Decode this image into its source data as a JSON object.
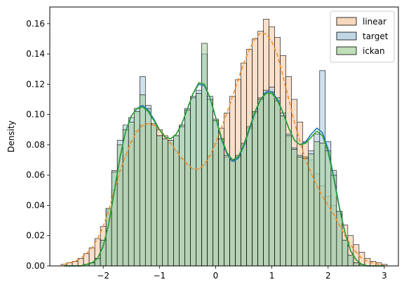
{
  "chart_data": {
    "type": "bar",
    "xlabel": "",
    "ylabel": "Density",
    "xlim": [
      -2.95,
      3.25
    ],
    "ylim": [
      0,
      0.171
    ],
    "xticks": [
      -2,
      -1,
      0,
      1,
      2,
      3
    ],
    "xtick_labels": [
      "−2",
      "−1",
      "0",
      "1",
      "2",
      "3"
    ],
    "yticks": [
      0,
      0.02,
      0.04,
      0.06,
      0.08,
      0.1,
      0.12,
      0.14,
      0.16
    ],
    "ytick_labels": [
      "0.00",
      "0.02",
      "0.04",
      "0.06",
      "0.08",
      "0.10",
      "0.12",
      "0.14",
      "0.16"
    ],
    "grid": false,
    "legend_position": "top-right",
    "bins": {
      "start": -2.75,
      "width": 0.1,
      "count": 58
    },
    "series": [
      {
        "name": "linear",
        "fill": "#f5c7a0",
        "fill_opacity": 0.55,
        "kde_color": "#f28e2b",
        "kde_style": "dashed",
        "values": [
          0.001,
          0.002,
          0.003,
          0.005,
          0.008,
          0.012,
          0.018,
          0.026,
          0.037,
          0.05,
          0.063,
          0.073,
          0.082,
          0.089,
          0.093,
          0.094,
          0.093,
          0.09,
          0.086,
          0.081,
          0.076,
          0.071,
          0.067,
          0.064,
          0.064,
          0.067,
          0.073,
          0.081,
          0.091,
          0.101,
          0.112,
          0.123,
          0.134,
          0.143,
          0.15,
          0.155,
          0.163,
          0.158,
          0.151,
          0.139,
          0.125,
          0.11,
          0.095,
          0.082,
          0.07,
          0.061,
          0.053,
          0.046,
          0.04,
          0.034,
          0.027,
          0.02,
          0.014,
          0.009,
          0.005,
          0.003,
          0.002,
          0.001
        ],
        "kde": [
          0.001,
          0.002,
          0.003,
          0.005,
          0.008,
          0.012,
          0.018,
          0.026,
          0.037,
          0.05,
          0.063,
          0.073,
          0.082,
          0.089,
          0.093,
          0.094,
          0.093,
          0.09,
          0.086,
          0.081,
          0.076,
          0.071,
          0.067,
          0.064,
          0.064,
          0.067,
          0.073,
          0.081,
          0.091,
          0.101,
          0.112,
          0.123,
          0.134,
          0.143,
          0.15,
          0.154,
          0.153,
          0.148,
          0.139,
          0.125,
          0.11,
          0.095,
          0.082,
          0.07,
          0.061,
          0.053,
          0.046,
          0.04,
          0.034,
          0.027,
          0.02,
          0.014,
          0.009,
          0.005,
          0.003,
          0.002,
          0.001,
          0.0
        ]
      },
      {
        "name": "target",
        "fill": "#a6c6dc",
        "fill_opacity": 0.55,
        "kde_color": "#1f77b4",
        "kde_style": "solid",
        "values": [
          0.0,
          0.0,
          0.0,
          0.0,
          0.001,
          0.002,
          0.005,
          0.017,
          0.038,
          0.063,
          0.083,
          0.093,
          0.098,
          0.104,
          0.125,
          0.106,
          0.094,
          0.086,
          0.084,
          0.083,
          0.086,
          0.093,
          0.104,
          0.112,
          0.116,
          0.14,
          0.112,
          0.097,
          0.084,
          0.072,
          0.069,
          0.072,
          0.08,
          0.091,
          0.101,
          0.111,
          0.116,
          0.118,
          0.111,
          0.101,
          0.087,
          0.078,
          0.073,
          0.072,
          0.076,
          0.087,
          0.129,
          0.082,
          0.063,
          0.036,
          0.017,
          0.007,
          0.002,
          0.001,
          0.0,
          0.0,
          0.0,
          0.0
        ],
        "kde": [
          0.0,
          0.0,
          0.0,
          0.0,
          0.001,
          0.002,
          0.005,
          0.013,
          0.028,
          0.05,
          0.072,
          0.089,
          0.099,
          0.104,
          0.106,
          0.103,
          0.097,
          0.09,
          0.085,
          0.084,
          0.087,
          0.094,
          0.104,
          0.114,
          0.12,
          0.119,
          0.111,
          0.098,
          0.084,
          0.074,
          0.069,
          0.071,
          0.079,
          0.09,
          0.101,
          0.11,
          0.115,
          0.115,
          0.11,
          0.101,
          0.091,
          0.083,
          0.08,
          0.082,
          0.087,
          0.091,
          0.088,
          0.077,
          0.059,
          0.039,
          0.022,
          0.01,
          0.004,
          0.001,
          0.0,
          0.0,
          0.0,
          0.0
        ]
      },
      {
        "name": "ickan",
        "fill": "#a3d19a",
        "fill_opacity": 0.55,
        "kde_color": "#2ca02c",
        "kde_style": "solid",
        "values": [
          0.0,
          0.0,
          0.0,
          0.0,
          0.001,
          0.002,
          0.005,
          0.017,
          0.038,
          0.062,
          0.08,
          0.09,
          0.095,
          0.102,
          0.113,
          0.104,
          0.093,
          0.086,
          0.084,
          0.083,
          0.086,
          0.092,
          0.103,
          0.111,
          0.114,
          0.147,
          0.11,
          0.096,
          0.084,
          0.073,
          0.07,
          0.073,
          0.081,
          0.092,
          0.102,
          0.11,
          0.114,
          0.115,
          0.109,
          0.099,
          0.086,
          0.077,
          0.072,
          0.071,
          0.074,
          0.082,
          0.081,
          0.076,
          0.06,
          0.036,
          0.017,
          0.007,
          0.002,
          0.001,
          0.0,
          0.0,
          0.0,
          0.0
        ],
        "kde": [
          0.0,
          0.0,
          0.0,
          0.0,
          0.001,
          0.002,
          0.005,
          0.013,
          0.028,
          0.05,
          0.072,
          0.089,
          0.099,
          0.104,
          0.105,
          0.102,
          0.096,
          0.09,
          0.085,
          0.084,
          0.087,
          0.094,
          0.104,
          0.114,
          0.121,
          0.12,
          0.111,
          0.098,
          0.085,
          0.075,
          0.07,
          0.072,
          0.08,
          0.091,
          0.102,
          0.11,
          0.114,
          0.114,
          0.109,
          0.101,
          0.091,
          0.083,
          0.08,
          0.081,
          0.085,
          0.089,
          0.086,
          0.075,
          0.058,
          0.038,
          0.022,
          0.01,
          0.004,
          0.001,
          0.0,
          0.0,
          0.0,
          0.0
        ]
      }
    ]
  }
}
